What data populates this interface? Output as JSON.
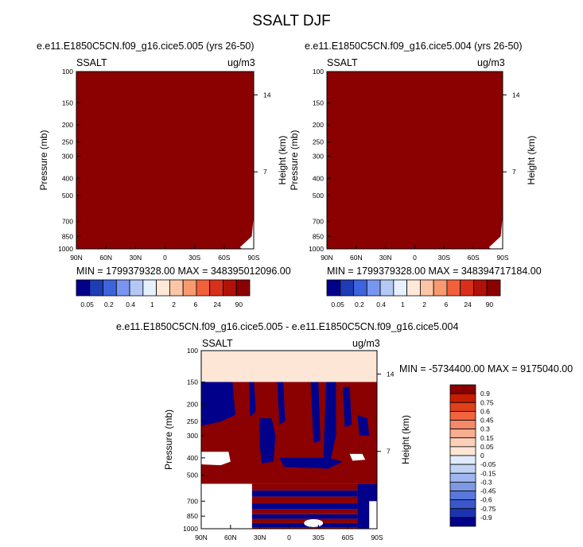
{
  "figure_title": "SSALT DJF",
  "chart_data": [
    {
      "type": "heatmap",
      "title": "e.e11.E1850C5CN.f09_g16.cice5.005 (yrs 26-50)",
      "field_label": "SSALT",
      "units": "ug/m3",
      "ylabel": "Pressure (mb)",
      "ylabel_right": "Height (km)",
      "x_ticks": [
        "90N",
        "60N",
        "30N",
        "0",
        "30S",
        "60S",
        "90S"
      ],
      "y_ticks": [
        100,
        150,
        200,
        250,
        300,
        400,
        500,
        700,
        850,
        1000
      ],
      "y_ticks_right": [
        14,
        7
      ],
      "stats_text": "MIN = 1799379328.00  MAX = 348395012096.00",
      "min": 1799379328.0,
      "max": 348395012096.0,
      "colorbar_labels": [
        "0.05",
        "0.2",
        "0.4",
        "1",
        "2",
        "6",
        "24",
        "90"
      ],
      "dominant_level": "> 90"
    },
    {
      "type": "heatmap",
      "title": "e.e11.E1850C5CN.f09_g16.cice5.004 (yrs 26-50)",
      "field_label": "SSALT",
      "units": "ug/m3",
      "ylabel": "Pressure (mb)",
      "ylabel_right": "Height (km)",
      "x_ticks": [
        "90N",
        "60N",
        "30N",
        "0",
        "30S",
        "60S",
        "90S"
      ],
      "y_ticks": [
        100,
        150,
        200,
        250,
        300,
        400,
        500,
        700,
        850,
        1000
      ],
      "y_ticks_right": [
        14,
        7
      ],
      "stats_text": "MIN = 1799379328.00  MAX = 348394717184.00",
      "min": 1799379328.0,
      "max": 348394717184.0,
      "colorbar_labels": [
        "0.05",
        "0.2",
        "0.4",
        "1",
        "2",
        "6",
        "24",
        "90"
      ],
      "dominant_level": "> 90"
    },
    {
      "type": "heatmap",
      "title": "e.e11.E1850C5CN.f09_g16.cice5.005 - e.e11.E1850C5CN.f09_g16.cice5.004",
      "field_label": "SSALT",
      "units": "ug/m3",
      "ylabel": "Pressure (mb)",
      "ylabel_right": "Height (km)",
      "x_ticks": [
        "90N",
        "60N",
        "30N",
        "0",
        "30S",
        "60S",
        "90S"
      ],
      "y_ticks": [
        100,
        150,
        200,
        250,
        300,
        400,
        500,
        700,
        850,
        1000
      ],
      "y_ticks_right": [
        14,
        7
      ],
      "stats_text": "MIN = -5734400.00  MAX = 9175040.00",
      "min": -5734400.0,
      "max": 9175040.0,
      "colorbar_labels": [
        "0.9",
        "0.75",
        "0.6",
        "0.45",
        "0.3",
        "0.15",
        "0.05",
        "0",
        "-0.05",
        "-0.15",
        "-0.3",
        "-0.45",
        "-0.6",
        "-0.75",
        "-0.9"
      ],
      "upper_band_level": "0 to 0.05",
      "dominant_levels": [
        "> 0.9",
        "< -0.9"
      ]
    }
  ],
  "colors": {
    "abs_scale": [
      "#00008b",
      "#1e3cb4",
      "#3c64dc",
      "#7896f0",
      "#b4c8f5",
      "#e6f0ff",
      "#ffe8d8",
      "#fcc6a6",
      "#f89a70",
      "#f0603a",
      "#d8301a",
      "#b01208",
      "#8b0000"
    ],
    "diff_scale": [
      "#8b0000",
      "#c81c00",
      "#e0401a",
      "#f06440",
      "#f48868",
      "#f8ac90",
      "#fcd0b8",
      "#fde6d6",
      "#e1ebff",
      "#c0d3f5",
      "#9fb7ee",
      "#7e98e6",
      "#5a78dc",
      "#3a58cc",
      "#1a34b4",
      "#00008b"
    ],
    "dark_red": "#8b0000",
    "dark_blue": "#00008b",
    "peach": "#fde6d6"
  }
}
